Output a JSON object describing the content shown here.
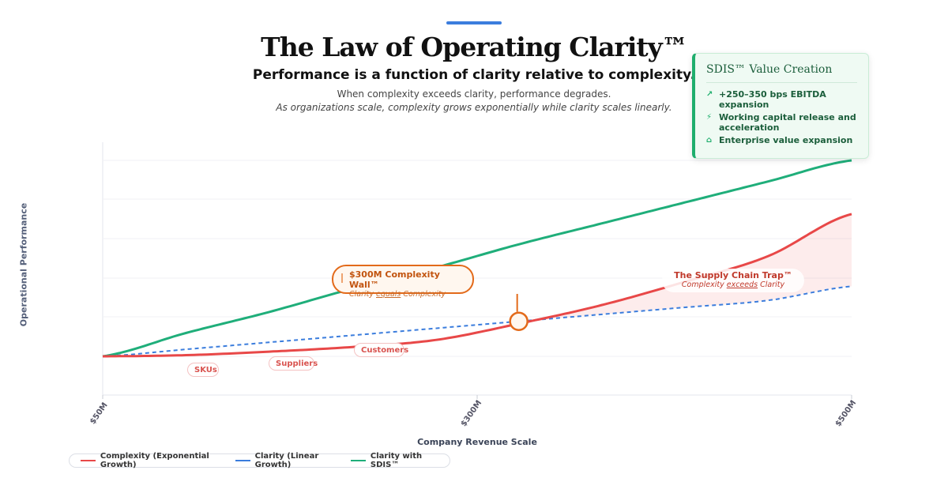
{
  "header": {
    "title": "The Law of Operating Clarity™",
    "subtitle": "Performance is a function of clarity relative to complexity.",
    "desc_line1": "When complexity exceeds clarity, performance degrades.",
    "desc_line2": "As organizations scale, complexity grows exponentially while clarity scales linearly."
  },
  "card": {
    "title": "SDIS™ Value Creation",
    "items": [
      {
        "icon": "trending-up-icon",
        "text": "+250–350 bps EBITDA expansion"
      },
      {
        "icon": "lightning-icon",
        "text": "Working capital release and acceleration"
      },
      {
        "icon": "bank-icon",
        "text": "Enterprise value expansion"
      }
    ]
  },
  "annotations": {
    "wall_title": "$300M Complexity Wall™",
    "wall_sub_pre": "Clarity ",
    "wall_sub_em": "equals",
    "wall_sub_post": " Complexity",
    "trap_title": "The Supply Chain Trap™",
    "trap_sub_pre": "Complexity ",
    "trap_sub_em": "exceeds",
    "trap_sub_post": " Clarity",
    "chips": [
      "SKUs",
      "Suppliers",
      "Customers"
    ]
  },
  "colors": {
    "complexity": "#e84848",
    "clarity": "#3b7ddd",
    "sdis": "#1fae7a",
    "wall": "#e36a1a"
  },
  "chart_data": {
    "type": "line",
    "title": "The Law of Operating Clarity™",
    "xlabel": "Company Revenue Scale",
    "ylabel": "Operational Performance",
    "x_ticks": [
      "$50M",
      "$300M",
      "$500M"
    ],
    "x": [
      50,
      100,
      150,
      200,
      250,
      300,
      350,
      400,
      450,
      500
    ],
    "xlim": [
      50,
      500
    ],
    "ylim": [
      0,
      100
    ],
    "grid": true,
    "series": [
      {
        "name": "Complexity (Exponential Growth)",
        "style": "solid",
        "values": [
          16,
          16.5,
          18,
          20,
          23,
          30,
          38,
          48,
          59,
          77
        ]
      },
      {
        "name": "Clarity (Linear Growth)",
        "style": "dashed",
        "values": [
          16,
          19,
          22,
          25,
          28,
          31,
          34,
          37,
          40,
          46
        ]
      },
      {
        "name": "Clarity with SDIS™",
        "style": "solid",
        "values": [
          16,
          26,
          35,
          45,
          54,
          64,
          73,
          82,
          91,
          100
        ]
      }
    ],
    "markers": [
      {
        "label": "$300M Complexity Wall™",
        "x": 300,
        "y": 31
      }
    ]
  }
}
